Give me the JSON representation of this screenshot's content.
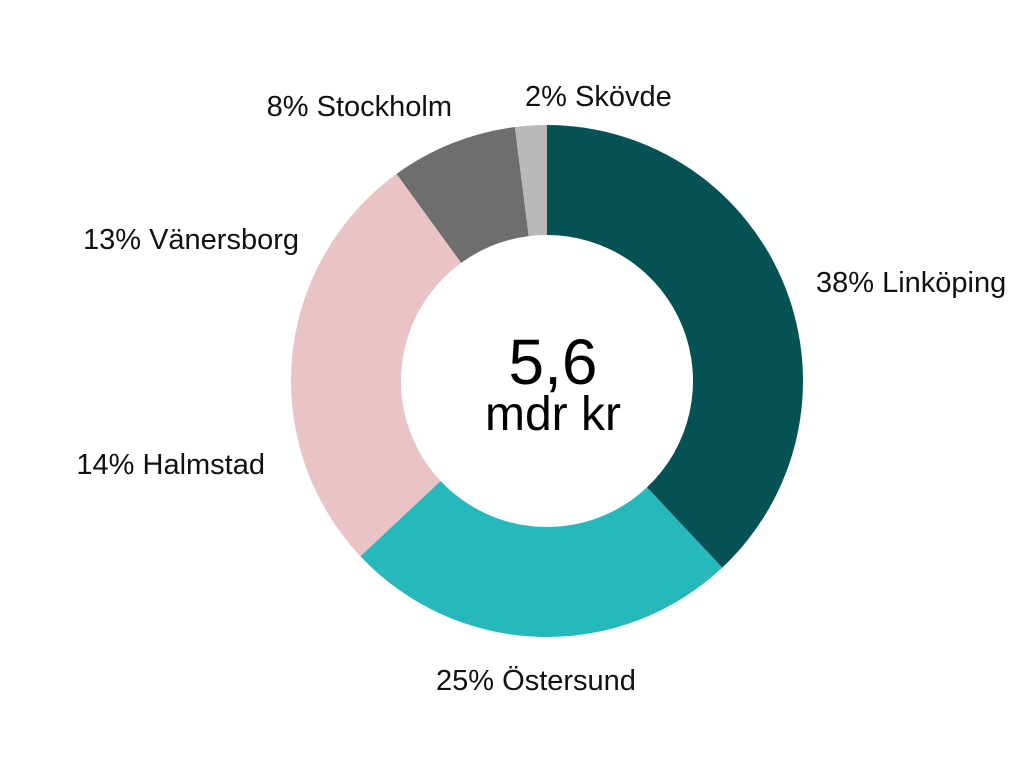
{
  "chart_data": {
    "type": "pie",
    "title": "",
    "center_value": "5,6",
    "center_unit": "mdr kr",
    "slices": [
      {
        "label": "38% Linköping",
        "value": 38,
        "color": "#045254"
      },
      {
        "label": "25% Östersund",
        "value": 25,
        "color": "#26B8BA"
      },
      {
        "label": "14% Halmstad",
        "value": 14,
        "color": "#E9C3C5"
      },
      {
        "label": "13% Vänersborg",
        "value": 13,
        "color": "#E9C3C5"
      },
      {
        "label": "8% Stockholm",
        "value": 8,
        "color": "#6E6E6E"
      },
      {
        "label": "2% Skövde",
        "value": 2,
        "color": "#B9B9B9"
      }
    ]
  }
}
